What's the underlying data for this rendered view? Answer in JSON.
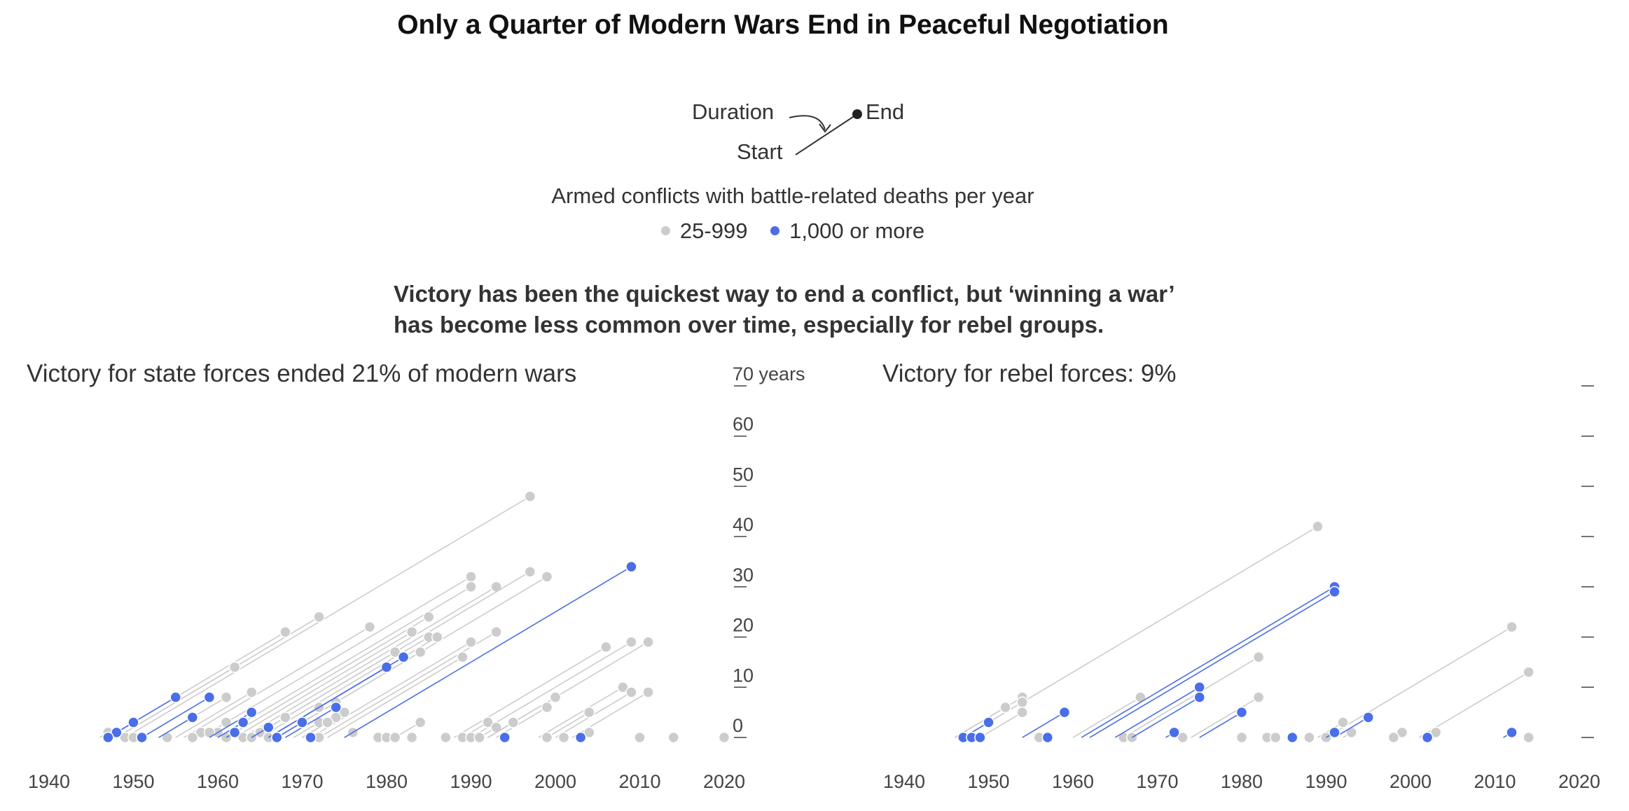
{
  "title": "Only a Quarter of Modern Wars End in Peaceful Negotiation",
  "legend": {
    "key_duration": "Duration",
    "key_start": "Start",
    "key_end": "End",
    "heading": "Armed conflicts with battle-related deaths per year",
    "items": [
      {
        "label": "25-999",
        "color": "#cccccc"
      },
      {
        "label": "1,000 or more",
        "color": "#4a6ee8"
      }
    ]
  },
  "subtitle_lines": [
    "Victory has been the quickest way to end a conflict, but ‘winning a war’",
    "has become less common over time, especially for rebel groups."
  ],
  "colors": {
    "minor": "#cccccc",
    "major": "#4a6ee8",
    "axis": "#444444"
  },
  "chart_data": [
    {
      "type": "scatter",
      "title": "Victory for state forces ended 21% of modern wars",
      "xlabel": "",
      "ylabel": "",
      "xlim": [
        1940,
        2020
      ],
      "ylim": [
        0,
        70
      ],
      "x_ticks": [
        1940,
        1950,
        1960,
        1970,
        1980,
        1990,
        2000,
        2010,
        2020
      ],
      "y_ticks": [
        0,
        10,
        20,
        30,
        40,
        50,
        60,
        70
      ],
      "y_tick_labels": [
        "0",
        "10",
        "20",
        "30",
        "40",
        "50",
        "60",
        "70 years"
      ],
      "encoding": "x = end year, y = duration in years; each conflict drawn as a line from its start year (duration 0) to its end point",
      "points": [
        {
          "end": 1997,
          "dur": 48,
          "intensity": "minor"
        },
        {
          "end": 1972,
          "dur": 24,
          "intensity": "minor"
        },
        {
          "end": 1968,
          "dur": 21,
          "intensity": "minor"
        },
        {
          "end": 1962,
          "dur": 14,
          "intensity": "minor"
        },
        {
          "end": 1978,
          "dur": 22,
          "intensity": "minor"
        },
        {
          "end": 1990,
          "dur": 32,
          "intensity": "minor"
        },
        {
          "end": 1990,
          "dur": 30,
          "intensity": "minor"
        },
        {
          "end": 1993,
          "dur": 30,
          "intensity": "minor"
        },
        {
          "end": 1997,
          "dur": 33,
          "intensity": "minor"
        },
        {
          "end": 1999,
          "dur": 32,
          "intensity": "minor"
        },
        {
          "end": 1985,
          "dur": 24,
          "intensity": "minor"
        },
        {
          "end": 1983,
          "dur": 21,
          "intensity": "minor"
        },
        {
          "end": 1985,
          "dur": 20,
          "intensity": "minor"
        },
        {
          "end": 1986,
          "dur": 20,
          "intensity": "minor"
        },
        {
          "end": 1993,
          "dur": 21,
          "intensity": "minor"
        },
        {
          "end": 1990,
          "dur": 19,
          "intensity": "minor"
        },
        {
          "end": 1981,
          "dur": 17,
          "intensity": "minor"
        },
        {
          "end": 1984,
          "dur": 17,
          "intensity": "minor"
        },
        {
          "end": 1989,
          "dur": 16,
          "intensity": "minor"
        },
        {
          "end": 2006,
          "dur": 18,
          "intensity": "minor"
        },
        {
          "end": 2009,
          "dur": 19,
          "intensity": "minor"
        },
        {
          "end": 2011,
          "dur": 19,
          "intensity": "minor"
        },
        {
          "end": 2008,
          "dur": 10,
          "intensity": "minor"
        },
        {
          "end": 2011,
          "dur": 9,
          "intensity": "minor"
        },
        {
          "end": 2009,
          "dur": 9,
          "intensity": "minor"
        },
        {
          "end": 2000,
          "dur": 8,
          "intensity": "minor"
        },
        {
          "end": 1999,
          "dur": 6,
          "intensity": "minor"
        },
        {
          "end": 2004,
          "dur": 5,
          "intensity": "minor"
        },
        {
          "end": 2004,
          "dur": 1,
          "intensity": "minor"
        },
        {
          "end": 1964,
          "dur": 9,
          "intensity": "minor"
        },
        {
          "end": 1961,
          "dur": 8,
          "intensity": "minor"
        },
        {
          "end": 1974,
          "dur": 7,
          "intensity": "minor"
        },
        {
          "end": 1972,
          "dur": 6,
          "intensity": "minor"
        },
        {
          "end": 1975,
          "dur": 5,
          "intensity": "minor"
        },
        {
          "end": 1968,
          "dur": 4,
          "intensity": "minor"
        },
        {
          "end": 1974,
          "dur": 4,
          "intensity": "minor"
        },
        {
          "end": 1972,
          "dur": 3,
          "intensity": "minor"
        },
        {
          "end": 1973,
          "dur": 3,
          "intensity": "minor"
        },
        {
          "end": 1961,
          "dur": 3,
          "intensity": "minor"
        },
        {
          "end": 1960,
          "dur": 1,
          "intensity": "minor"
        },
        {
          "end": 1958,
          "dur": 1,
          "intensity": "minor"
        },
        {
          "end": 1959,
          "dur": 1,
          "intensity": "minor"
        },
        {
          "end": 1965,
          "dur": 1,
          "intensity": "minor"
        },
        {
          "end": 1976,
          "dur": 1,
          "intensity": "minor"
        },
        {
          "end": 1984,
          "dur": 3,
          "intensity": "minor"
        },
        {
          "end": 1992,
          "dur": 3,
          "intensity": "minor"
        },
        {
          "end": 1993,
          "dur": 2,
          "intensity": "minor"
        },
        {
          "end": 1995,
          "dur": 3,
          "intensity": "minor"
        },
        {
          "end": 1995,
          "dur": 3,
          "intensity": "minor"
        },
        {
          "end": 1947,
          "dur": 1,
          "intensity": "minor"
        },
        {
          "end": 1948,
          "dur": 1,
          "intensity": "minor"
        },
        {
          "end": 1949,
          "dur": 0,
          "intensity": "minor"
        },
        {
          "end": 1950,
          "dur": 0,
          "intensity": "minor"
        },
        {
          "end": 1951,
          "dur": 0,
          "intensity": "minor"
        },
        {
          "end": 1954,
          "dur": 0,
          "intensity": "minor"
        },
        {
          "end": 1957,
          "dur": 0,
          "intensity": "minor"
        },
        {
          "end": 1961,
          "dur": 0,
          "intensity": "minor"
        },
        {
          "end": 1963,
          "dur": 0,
          "intensity": "minor"
        },
        {
          "end": 1964,
          "dur": 0,
          "intensity": "minor"
        },
        {
          "end": 1966,
          "dur": 0,
          "intensity": "minor"
        },
        {
          "end": 1967,
          "dur": 0,
          "intensity": "minor"
        },
        {
          "end": 1972,
          "dur": 0,
          "intensity": "minor"
        },
        {
          "end": 1979,
          "dur": 0,
          "intensity": "minor"
        },
        {
          "end": 1980,
          "dur": 0,
          "intensity": "minor"
        },
        {
          "end": 1981,
          "dur": 0,
          "intensity": "minor"
        },
        {
          "end": 1983,
          "dur": 0,
          "intensity": "minor"
        },
        {
          "end": 1987,
          "dur": 0,
          "intensity": "minor"
        },
        {
          "end": 1989,
          "dur": 0,
          "intensity": "minor"
        },
        {
          "end": 1990,
          "dur": 0,
          "intensity": "minor"
        },
        {
          "end": 1991,
          "dur": 0,
          "intensity": "minor"
        },
        {
          "end": 1999,
          "dur": 0,
          "intensity": "minor"
        },
        {
          "end": 2001,
          "dur": 0,
          "intensity": "minor"
        },
        {
          "end": 2010,
          "dur": 0,
          "intensity": "minor"
        },
        {
          "end": 2014,
          "dur": 0,
          "intensity": "minor"
        },
        {
          "end": 2020,
          "dur": 0,
          "intensity": "minor"
        },
        {
          "end": 2009,
          "dur": 34,
          "intensity": "major"
        },
        {
          "end": 1980,
          "dur": 14,
          "intensity": "major"
        },
        {
          "end": 1982,
          "dur": 16,
          "intensity": "major"
        },
        {
          "end": 1974,
          "dur": 6,
          "intensity": "major"
        },
        {
          "end": 1970,
          "dur": 3,
          "intensity": "major"
        },
        {
          "end": 1966,
          "dur": 2,
          "intensity": "major"
        },
        {
          "end": 1964,
          "dur": 5,
          "intensity": "major"
        },
        {
          "end": 1963,
          "dur": 3,
          "intensity": "major"
        },
        {
          "end": 1962,
          "dur": 1,
          "intensity": "major"
        },
        {
          "end": 1955,
          "dur": 8,
          "intensity": "major"
        },
        {
          "end": 1959,
          "dur": 8,
          "intensity": "major"
        },
        {
          "end": 1957,
          "dur": 4,
          "intensity": "major"
        },
        {
          "end": 1950,
          "dur": 3,
          "intensity": "major"
        },
        {
          "end": 1948,
          "dur": 1,
          "intensity": "major"
        },
        {
          "end": 1947,
          "dur": 0,
          "intensity": "major"
        },
        {
          "end": 1951,
          "dur": 0,
          "intensity": "major"
        },
        {
          "end": 1967,
          "dur": 0,
          "intensity": "major"
        },
        {
          "end": 1971,
          "dur": 0,
          "intensity": "major"
        },
        {
          "end": 1994,
          "dur": 0,
          "intensity": "major"
        },
        {
          "end": 2003,
          "dur": 0,
          "intensity": "major"
        }
      ]
    },
    {
      "type": "scatter",
      "title": "Victory for rebel forces: 9%",
      "xlabel": "",
      "ylabel": "",
      "xlim": [
        1940,
        2020
      ],
      "ylim": [
        0,
        70
      ],
      "x_ticks": [
        1940,
        1950,
        1960,
        1970,
        1980,
        1990,
        2000,
        2010,
        2020
      ],
      "y_ticks": [
        0,
        10,
        20,
        30,
        40,
        50,
        60,
        70
      ],
      "encoding": "x = end year, y = duration in years; each conflict drawn as a line from its start year (duration 0) to its end point",
      "points": [
        {
          "end": 1989,
          "dur": 42,
          "intensity": "minor"
        },
        {
          "end": 2012,
          "dur": 22,
          "intensity": "minor"
        },
        {
          "end": 2014,
          "dur": 13,
          "intensity": "minor"
        },
        {
          "end": 1982,
          "dur": 16,
          "intensity": "minor"
        },
        {
          "end": 1982,
          "dur": 8,
          "intensity": "minor"
        },
        {
          "end": 1968,
          "dur": 8,
          "intensity": "minor"
        },
        {
          "end": 1954,
          "dur": 8,
          "intensity": "minor"
        },
        {
          "end": 1954,
          "dur": 7,
          "intensity": "minor"
        },
        {
          "end": 1952,
          "dur": 6,
          "intensity": "minor"
        },
        {
          "end": 1954,
          "dur": 5,
          "intensity": "minor"
        },
        {
          "end": 1992,
          "dur": 3,
          "intensity": "minor"
        },
        {
          "end": 1993,
          "dur": 1,
          "intensity": "minor"
        },
        {
          "end": 1999,
          "dur": 1,
          "intensity": "minor"
        },
        {
          "end": 2003,
          "dur": 1,
          "intensity": "minor"
        },
        {
          "end": 1966,
          "dur": 0,
          "intensity": "minor"
        },
        {
          "end": 1967,
          "dur": 0,
          "intensity": "minor"
        },
        {
          "end": 1973,
          "dur": 0,
          "intensity": "minor"
        },
        {
          "end": 1980,
          "dur": 0,
          "intensity": "minor"
        },
        {
          "end": 1983,
          "dur": 0,
          "intensity": "minor"
        },
        {
          "end": 1984,
          "dur": 0,
          "intensity": "minor"
        },
        {
          "end": 1988,
          "dur": 0,
          "intensity": "minor"
        },
        {
          "end": 1990,
          "dur": 0,
          "intensity": "minor"
        },
        {
          "end": 1998,
          "dur": 0,
          "intensity": "minor"
        },
        {
          "end": 2014,
          "dur": 0,
          "intensity": "minor"
        },
        {
          "end": 1956,
          "dur": 0,
          "intensity": "minor"
        },
        {
          "end": 1991,
          "dur": 30,
          "intensity": "major"
        },
        {
          "end": 1991,
          "dur": 29,
          "intensity": "major"
        },
        {
          "end": 1975,
          "dur": 10,
          "intensity": "major"
        },
        {
          "end": 1975,
          "dur": 8,
          "intensity": "major"
        },
        {
          "end": 1980,
          "dur": 5,
          "intensity": "major"
        },
        {
          "end": 1959,
          "dur": 5,
          "intensity": "major"
        },
        {
          "end": 1950,
          "dur": 3,
          "intensity": "major"
        },
        {
          "end": 1995,
          "dur": 4,
          "intensity": "major"
        },
        {
          "end": 1991,
          "dur": 1,
          "intensity": "major"
        },
        {
          "end": 1972,
          "dur": 1,
          "intensity": "major"
        },
        {
          "end": 2012,
          "dur": 1,
          "intensity": "major"
        },
        {
          "end": 1947,
          "dur": 0,
          "intensity": "major"
        },
        {
          "end": 1948,
          "dur": 0,
          "intensity": "major"
        },
        {
          "end": 1949,
          "dur": 0,
          "intensity": "major"
        },
        {
          "end": 1957,
          "dur": 0,
          "intensity": "major"
        },
        {
          "end": 1986,
          "dur": 0,
          "intensity": "major"
        },
        {
          "end": 2002,
          "dur": 0,
          "intensity": "major"
        }
      ]
    }
  ]
}
